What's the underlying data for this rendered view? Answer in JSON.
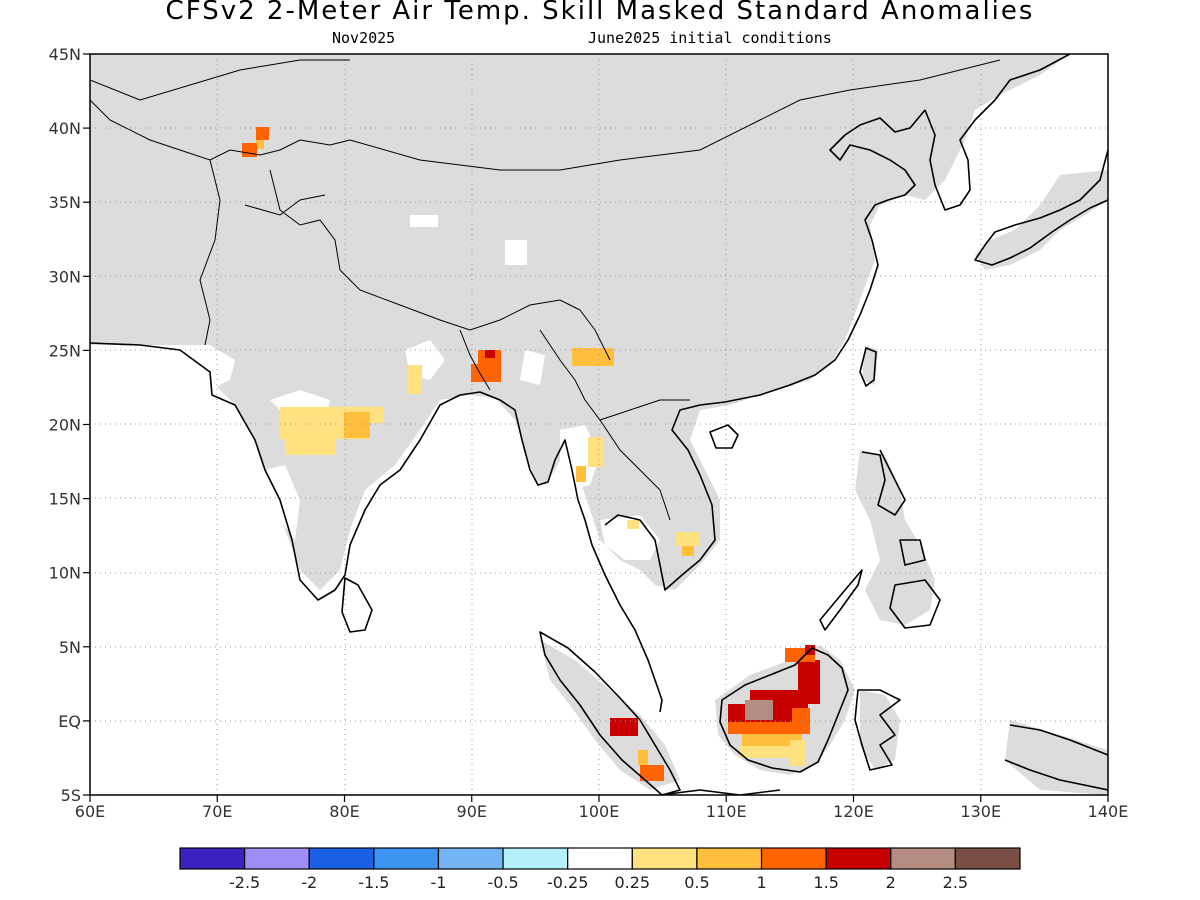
{
  "header": {
    "title": "CFSv2 2-Meter Air Temp. Skill Masked Standard Anomalies",
    "target_month": "Nov2025",
    "init_conditions": "June2025 initial conditions"
  },
  "map": {
    "lon_range": [
      60,
      140
    ],
    "lat_range": [
      -5,
      45
    ],
    "lon_ticks": [
      "60E",
      "70E",
      "80E",
      "90E",
      "100E",
      "110E",
      "120E",
      "130E",
      "140E"
    ],
    "lat_ticks": [
      "45N",
      "40N",
      "35N",
      "30N",
      "25N",
      "20N",
      "15N",
      "10N",
      "5N",
      "EQ",
      "5S"
    ],
    "masked_color": "#dcdcdc",
    "background_color": "#ffffff",
    "coastline_color": "#000000"
  },
  "colorbar": {
    "colors": [
      "#3b22c0",
      "#9d8df5",
      "#1c60e6",
      "#3c95f0",
      "#73b4f5",
      "#b4f0fa",
      "#ffffff",
      "#ffe17f",
      "#ffbe3c",
      "#ff6400",
      "#c80000",
      "#b48c82",
      "#7a5046"
    ],
    "labels": [
      "-2.5",
      "-2",
      "-1.5",
      "-1",
      "-0.5",
      "-0.25",
      "0.25",
      "0.5",
      "1",
      "1.5",
      "2",
      "2.5"
    ]
  }
}
